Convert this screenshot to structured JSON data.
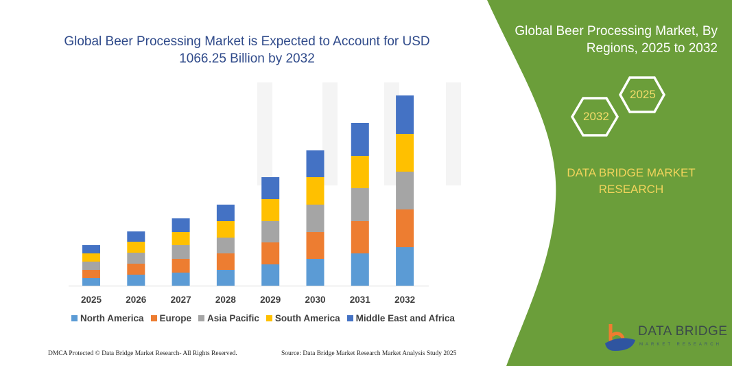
{
  "chart_data": {
    "type": "bar",
    "stacked": true,
    "title": "Global Beer Processing Market is Expected to Account for USD 1066.25 Billion by 2032",
    "categories": [
      "2025",
      "2026",
      "2027",
      "2028",
      "2029",
      "2030",
      "2031",
      "2032"
    ],
    "series": [
      {
        "name": "North America",
        "color": "#5b9bd5",
        "values": [
          11,
          16,
          19,
          23,
          31,
          39,
          47,
          56
        ]
      },
      {
        "name": "Europe",
        "color": "#ed7d31",
        "values": [
          12,
          16,
          20,
          24,
          32,
          39,
          47,
          55
        ]
      },
      {
        "name": "Asia Pacific",
        "color": "#a5a5a5",
        "values": [
          12,
          16,
          20,
          23,
          31,
          40,
          48,
          55
        ]
      },
      {
        "name": "South America",
        "color": "#ffc000",
        "values": [
          12,
          16,
          19,
          24,
          32,
          40,
          47,
          55
        ]
      },
      {
        "name": "Middle East and Africa",
        "color": "#4472c4",
        "values": [
          12,
          15,
          20,
          24,
          32,
          39,
          48,
          56
        ]
      }
    ],
    "xlabel": "",
    "ylabel": "",
    "grid": false,
    "y_axis_visible": false,
    "legend_position": "bottom"
  },
  "side_panel": {
    "title_line1": "Global Beer Processing Market, By",
    "title_line2": "Regions, 2025 to 2032",
    "hex_start": "2025",
    "hex_end": "2032",
    "brand_line1": "DATA BRIDGE MARKET",
    "brand_line2": "RESEARCH",
    "color": "#6b9e3a"
  },
  "title_line1": "Global Beer Processing Market is Expected to Account for USD",
  "title_line2": "1066.25 Billion by 2032",
  "footer": {
    "left": "DMCA Protected © Data Bridge Market Research- All Rights Reserved.",
    "right": "Source: Data Bridge Market Research Market Analysis Study 2025"
  },
  "logo": {
    "text": "DATA BRIDGE",
    "sub": "MARKET RESEARCH"
  }
}
